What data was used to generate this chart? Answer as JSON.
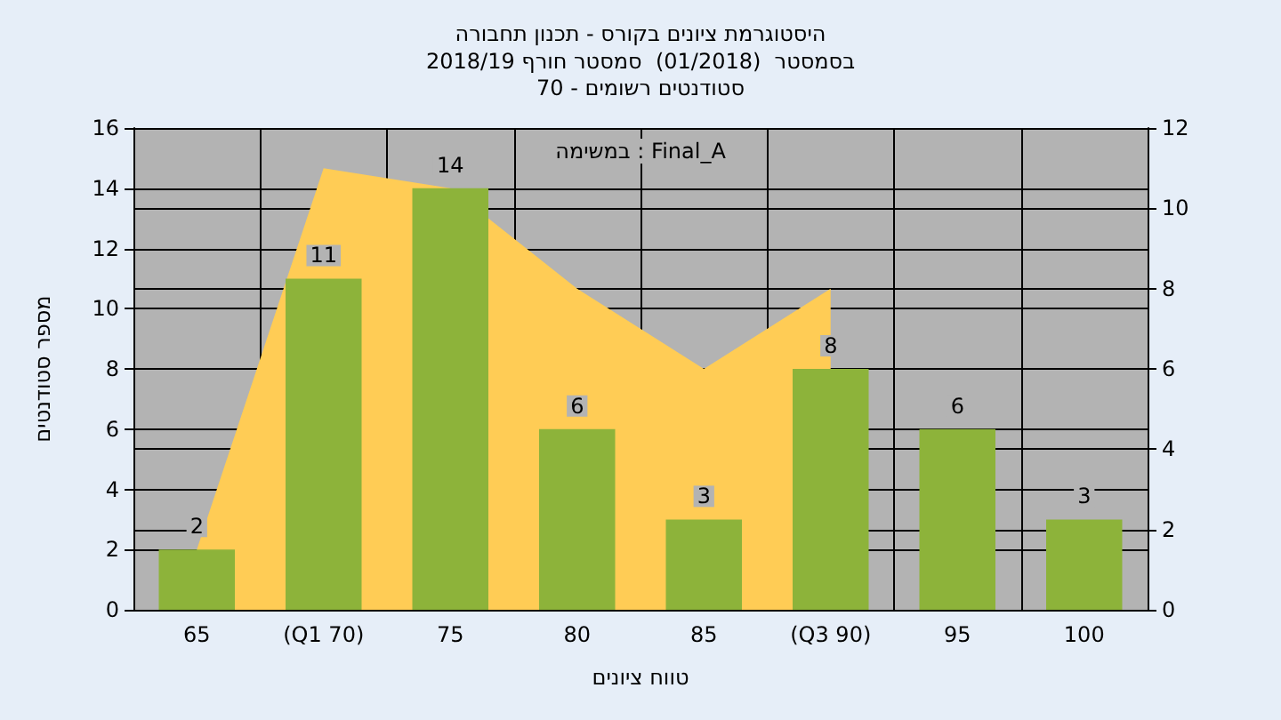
{
  "chart_data": {
    "type": "bar",
    "title": "היסטוגרמת ציונים בקורס - תכנון תחבורה",
    "subtitle": "בסמסטר  (01/2018)  סמסטר חורף 2018/19\nסטודנטים רשומים - 70",
    "xlabel": "טווח ציונים",
    "ylabel": "מספר סטודנטים",
    "annotations": [
      "במשימה : Final_A"
    ],
    "categories": [
      "65",
      "(Q1 70)",
      "75",
      "80",
      "85",
      "(Q3 90)",
      "95",
      "100"
    ],
    "series": [
      {
        "type": "area",
        "axis": "y2",
        "color": "#ffcc55",
        "values": [
          1.5,
          11,
          10.5,
          8,
          6,
          8,
          null,
          null
        ]
      },
      {
        "color": "#8db33a",
        "values": [
          2,
          11,
          14,
          6,
          3,
          8,
          6,
          3
        ],
        "value_labels": [
          "2",
          "11",
          "14",
          "6",
          "3",
          "8",
          "6",
          "3"
        ]
      }
    ],
    "grid": true,
    "ylim": [
      0,
      16
    ],
    "yticks": [
      0,
      2,
      4,
      6,
      8,
      10,
      12,
      14,
      16
    ],
    "y2lim": [
      0,
      12
    ],
    "y2ticks": [
      0,
      2,
      4,
      6,
      8,
      10,
      12
    ]
  }
}
